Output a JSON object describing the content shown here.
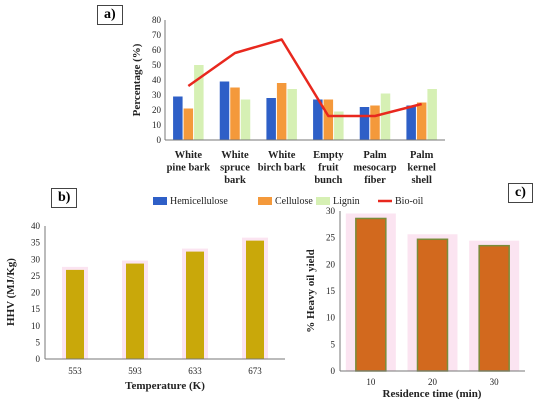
{
  "panels": {
    "a": "a)",
    "b": "b)",
    "c": "c)"
  },
  "chart_data": [
    {
      "type": "bar",
      "ylabel": "Percentage (%)",
      "ylim": [
        0,
        80
      ],
      "yticks": [
        0,
        10,
        20,
        30,
        40,
        50,
        60,
        70,
        80
      ],
      "grid": false,
      "legend_position": "bottom",
      "categories": [
        [
          "White",
          "pine bark"
        ],
        [
          "White",
          "spruce",
          "bark"
        ],
        [
          "White",
          "birch bark"
        ],
        [
          "Empty",
          "fruit",
          "bunch"
        ],
        [
          "Palm",
          "mesocarp",
          "fiber"
        ],
        [
          "Palm",
          "kernel",
          "shell"
        ]
      ],
      "series": [
        {
          "name": "Hemicellulose",
          "kind": "bar",
          "color": "#2e5fc7",
          "values": [
            29,
            39,
            28,
            27,
            22,
            23
          ]
        },
        {
          "name": "Cellulose",
          "kind": "bar",
          "color": "#f4993b",
          "values": [
            21,
            35,
            38,
            27,
            23,
            25
          ]
        },
        {
          "name": "Lignin",
          "kind": "bar",
          "color": "#d6f0b4",
          "values": [
            50,
            27,
            34,
            19,
            31,
            34
          ]
        },
        {
          "name": "Bio-oil",
          "kind": "line",
          "color": "#e8281e",
          "values": [
            36,
            58,
            67,
            16,
            16,
            24
          ]
        }
      ]
    },
    {
      "type": "bar",
      "xlabel": "Temperature (K)",
      "ylabel": "HHV (MJ/Kg)",
      "ylim": [
        0,
        40
      ],
      "yticks": [
        0,
        5,
        10,
        15,
        20,
        25,
        30,
        35,
        40
      ],
      "grid": false,
      "categories": [
        "553",
        "593",
        "633",
        "673"
      ],
      "series": [
        {
          "color": "#c9a80a",
          "values": [
            26.8,
            28.7,
            32.3,
            35.6
          ]
        }
      ]
    },
    {
      "type": "bar",
      "xlabel": "Residence time (min)",
      "ylabel": "% Heavy oil yield",
      "ylim": [
        0,
        30
      ],
      "yticks": [
        0,
        5,
        10,
        15,
        20,
        25,
        30
      ],
      "grid": false,
      "categories": [
        "10",
        "20",
        "30"
      ],
      "series": [
        {
          "color": "#d2691e",
          "values": [
            28.6,
            24.7,
            23.5
          ]
        }
      ]
    }
  ]
}
